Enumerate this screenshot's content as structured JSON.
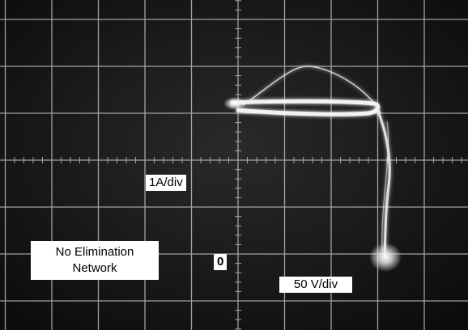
{
  "labels": {
    "current_scale": "1A/div",
    "condition": [
      "No Elimination",
      "Network"
    ],
    "origin": "0",
    "voltage_scale": "50 V/div"
  }
}
